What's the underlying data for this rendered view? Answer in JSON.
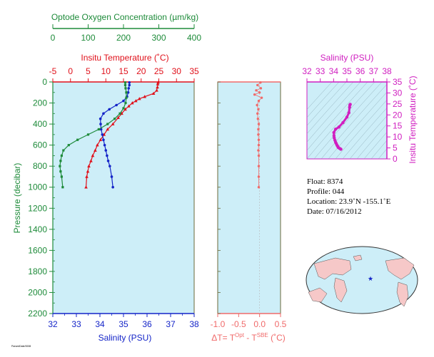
{
  "colors": {
    "oxygen": "#1e8b3a",
    "temperature": "#e0101a",
    "salinity": "#1424c8",
    "pressure": "#1e8b3a",
    "delta": "#f06a6a",
    "ts": "#d01fc0",
    "panel_bg": "#cdeef8",
    "frame": "#6b6a3a"
  },
  "chart_data": [
    {
      "type": "line",
      "title": "",
      "ylabel": "Pressure (decibar)",
      "ylim": [
        2200,
        0
      ],
      "y_ticks": [
        "0",
        "200",
        "400",
        "600",
        "800",
        "1000",
        "1200",
        "1400",
        "1600",
        "1800",
        "2000",
        "2200"
      ],
      "axes": {
        "oxygen": {
          "label": "Optode Oxygen Concentration (µm/kg)",
          "lim": [
            0,
            400
          ],
          "ticks": [
            "0",
            "100",
            "200",
            "300",
            "400"
          ]
        },
        "temperature": {
          "label": "Insitu Temperature (˚C)",
          "lim": [
            -5,
            35
          ],
          "ticks": [
            "-5",
            "0",
            "5",
            "10",
            "15",
            "20",
            "25",
            "30",
            "35"
          ]
        },
        "salinity": {
          "label": "Salinity (PSU)",
          "lim": [
            32,
            38
          ],
          "ticks": [
            "32",
            "33",
            "34",
            "35",
            "36",
            "37",
            "38"
          ]
        }
      },
      "series": [
        {
          "key": "temperature",
          "x": [
            24.8,
            24.7,
            24.6,
            24.4,
            23.5,
            21.0,
            19.5,
            18.5,
            17.5,
            16.5,
            15.5,
            14.5,
            13.5,
            12.0,
            10.5,
            9.5,
            8.5,
            7.6,
            7.0,
            6.3,
            5.8,
            5.2,
            4.9,
            4.6,
            4.4
          ],
          "y": [
            5,
            20,
            50,
            80,
            110,
            140,
            160,
            180,
            200,
            230,
            260,
            300,
            340,
            400,
            450,
            500,
            550,
            600,
            650,
            700,
            750,
            800,
            850,
            900,
            1000
          ]
        },
        {
          "key": "salinity",
          "x": [
            35.25,
            35.25,
            35.22,
            35.2,
            35.15,
            35.0,
            34.7,
            34.4,
            34.15,
            34.02,
            34.03,
            34.05,
            34.1,
            34.15,
            34.2,
            34.25,
            34.3,
            34.35,
            34.42,
            34.5,
            34.55
          ],
          "y": [
            5,
            30,
            60,
            100,
            140,
            180,
            220,
            260,
            300,
            350,
            400,
            450,
            500,
            550,
            600,
            650,
            700,
            750,
            800,
            900,
            1000
          ]
        },
        {
          "key": "oxygen",
          "x": [
            205,
            205,
            206,
            208,
            208,
            206,
            200,
            190,
            175,
            155,
            130,
            100,
            70,
            45,
            30,
            25,
            22,
            20,
            22,
            25,
            28
          ],
          "y": [
            5,
            30,
            60,
            100,
            150,
            200,
            250,
            300,
            350,
            400,
            450,
            500,
            550,
            600,
            650,
            700,
            750,
            800,
            850,
            900,
            1000
          ]
        }
      ]
    },
    {
      "type": "scatter",
      "title": "",
      "xlabel": "ΔT= T^Opt - T^SBE (˚C)",
      "xlim": [
        -1.0,
        0.5
      ],
      "x_ticks": [
        "-1.0",
        "-0.5",
        "0.0",
        "0.5"
      ],
      "ylim": [
        2200,
        0
      ],
      "series": [
        {
          "key": "delta",
          "x": [
            0.02,
            -0.05,
            0.03,
            -0.08,
            0.0,
            -0.12,
            0.05,
            -0.02,
            -0.06,
            -0.03,
            -0.05,
            -0.04,
            -0.02,
            -0.03,
            -0.03,
            -0.02,
            -0.02,
            -0.03,
            -0.02,
            -0.02,
            -0.02,
            -0.02
          ],
          "y": [
            5,
            30,
            60,
            80,
            100,
            120,
            150,
            180,
            220,
            260,
            300,
            350,
            400,
            450,
            500,
            550,
            600,
            650,
            700,
            800,
            900,
            1000
          ]
        }
      ]
    },
    {
      "type": "scatter",
      "title": "",
      "xlabel": "Salinity (PSU)",
      "ylabel": "Insitu Temperature (˚C)",
      "xlim": [
        32,
        38
      ],
      "ylim": [
        0,
        35
      ],
      "x_ticks": [
        "32",
        "33",
        "34",
        "35",
        "36",
        "37",
        "38"
      ],
      "y_ticks": [
        "0",
        "5",
        "10",
        "15",
        "20",
        "25",
        "30",
        "35"
      ],
      "series": [
        {
          "key": "ts",
          "x": [
            34.55,
            34.5,
            34.42,
            34.35,
            34.3,
            34.25,
            34.2,
            34.15,
            34.1,
            34.05,
            34.03,
            34.02,
            34.15,
            34.4,
            34.7,
            35.0,
            35.15,
            35.2,
            35.22,
            35.25
          ],
          "y": [
            4.4,
            4.6,
            4.9,
            5.2,
            5.8,
            6.3,
            7.0,
            7.6,
            8.5,
            9.5,
            10.5,
            12.0,
            13.5,
            14.5,
            16.5,
            19.0,
            21.0,
            23.5,
            24.5,
            24.8
          ]
        }
      ]
    }
  ],
  "info": {
    "float": "Float:  8374",
    "profile": "Profile:  044",
    "location": "Location:  23.9˚N  -155.1˚E",
    "date": "Date:  07/16/2012"
  },
  "map": {
    "marker": "★"
  },
  "footer": {
    "tiny_text": "ParsedDate/0008"
  }
}
